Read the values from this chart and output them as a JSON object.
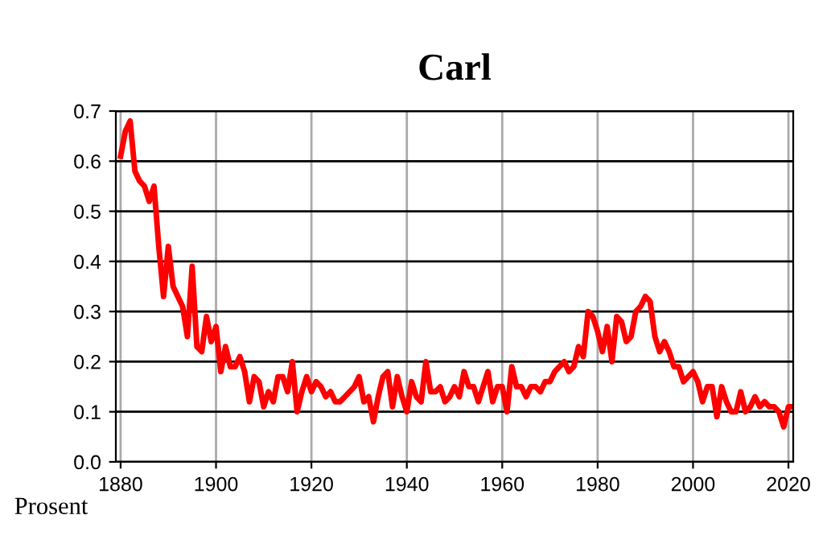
{
  "chart_data": {
    "type": "line",
    "title": "Carl",
    "ylabel": "Prosent",
    "x": [
      1880,
      1881,
      1882,
      1883,
      1884,
      1885,
      1886,
      1887,
      1888,
      1889,
      1890,
      1891,
      1892,
      1893,
      1894,
      1895,
      1896,
      1897,
      1898,
      1899,
      1900,
      1901,
      1902,
      1903,
      1904,
      1905,
      1906,
      1907,
      1908,
      1909,
      1910,
      1911,
      1912,
      1913,
      1914,
      1915,
      1916,
      1917,
      1918,
      1919,
      1920,
      1921,
      1922,
      1923,
      1924,
      1925,
      1926,
      1927,
      1928,
      1929,
      1930,
      1931,
      1932,
      1933,
      1934,
      1935,
      1936,
      1937,
      1938,
      1939,
      1940,
      1941,
      1942,
      1943,
      1944,
      1945,
      1946,
      1947,
      1948,
      1949,
      1950,
      1951,
      1952,
      1953,
      1954,
      1955,
      1956,
      1957,
      1958,
      1959,
      1960,
      1961,
      1962,
      1963,
      1964,
      1965,
      1966,
      1967,
      1968,
      1969,
      1970,
      1971,
      1972,
      1973,
      1974,
      1975,
      1976,
      1977,
      1978,
      1979,
      1980,
      1981,
      1982,
      1983,
      1984,
      1985,
      1986,
      1987,
      1988,
      1989,
      1990,
      1991,
      1992,
      1993,
      1994,
      1995,
      1996,
      1997,
      1998,
      1999,
      2000,
      2001,
      2002,
      2003,
      2004,
      2005,
      2006,
      2007,
      2008,
      2009,
      2010,
      2011,
      2012,
      2013,
      2014,
      2015,
      2016,
      2017,
      2018,
      2019,
      2020,
      2021
    ],
    "series": [
      {
        "color": "#ff0000",
        "values": [
          0.61,
          0.66,
          0.68,
          0.58,
          0.56,
          0.55,
          0.52,
          0.55,
          0.43,
          0.33,
          0.43,
          0.35,
          0.33,
          0.31,
          0.25,
          0.39,
          0.23,
          0.22,
          0.29,
          0.24,
          0.27,
          0.18,
          0.23,
          0.19,
          0.19,
          0.21,
          0.18,
          0.12,
          0.17,
          0.16,
          0.11,
          0.14,
          0.12,
          0.17,
          0.17,
          0.14,
          0.2,
          0.1,
          0.14,
          0.17,
          0.14,
          0.16,
          0.15,
          0.13,
          0.14,
          0.12,
          0.12,
          0.13,
          0.14,
          0.15,
          0.17,
          0.12,
          0.13,
          0.08,
          0.13,
          0.17,
          0.18,
          0.11,
          0.17,
          0.13,
          0.1,
          0.16,
          0.13,
          0.12,
          0.2,
          0.14,
          0.14,
          0.15,
          0.12,
          0.13,
          0.15,
          0.13,
          0.18,
          0.15,
          0.15,
          0.12,
          0.15,
          0.18,
          0.12,
          0.15,
          0.15,
          0.1,
          0.19,
          0.15,
          0.15,
          0.13,
          0.15,
          0.15,
          0.14,
          0.16,
          0.16,
          0.18,
          0.19,
          0.2,
          0.18,
          0.19,
          0.23,
          0.21,
          0.3,
          0.29,
          0.26,
          0.22,
          0.27,
          0.2,
          0.29,
          0.28,
          0.24,
          0.25,
          0.3,
          0.31,
          0.33,
          0.32,
          0.25,
          0.22,
          0.24,
          0.22,
          0.19,
          0.19,
          0.16,
          0.17,
          0.18,
          0.16,
          0.12,
          0.15,
          0.15,
          0.09,
          0.15,
          0.12,
          0.1,
          0.1,
          0.14,
          0.1,
          0.11,
          0.13,
          0.11,
          0.12,
          0.11,
          0.11,
          0.1,
          0.07,
          0.11,
          0.11
        ]
      }
    ],
    "xlim": [
      1879,
      2021
    ],
    "xticks": [
      1880,
      1900,
      1920,
      1940,
      1960,
      1980,
      2000,
      2020
    ],
    "ylim": [
      0,
      0.7
    ],
    "yticks": [
      {
        "value": 0,
        "label": "0.0"
      },
      0.1,
      0.2,
      0.3,
      0.4,
      0.5,
      0.6,
      0.7
    ],
    "grid": true,
    "marker": "none",
    "line_style": "solid"
  }
}
